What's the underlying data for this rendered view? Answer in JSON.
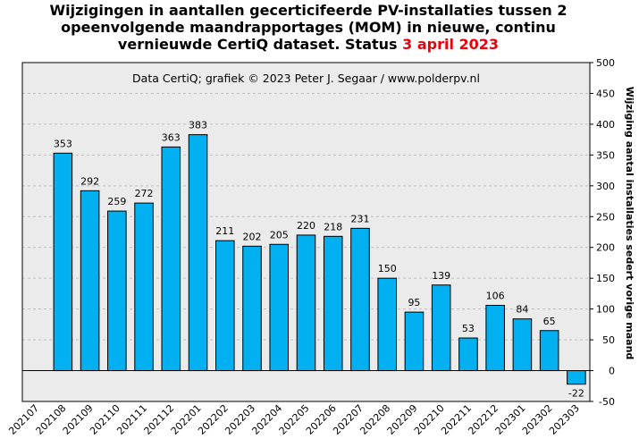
{
  "title": {
    "line1": "Wijzigingen in aantallen gecerticifeerde PV-installaties tussen 2",
    "line2": "opeenvolgende maandrapportages (MOM) in nieuwe, continu",
    "line3_prefix": "vernieuwde CertiQ dataset. Status",
    "line3_highlight": "3 april 2023",
    "highlight_color": "#e8000b"
  },
  "subtitle": "Data CertiQ; grafiek © 2023 Peter J. Segaar / www.polderpv.nl",
  "colors": {
    "bar": "#00b0f0",
    "plot_bg": "#ebebeb",
    "grid": "#bfbfbf"
  },
  "chart_data": {
    "type": "bar",
    "categories": [
      "202107",
      "202108",
      "202109",
      "202110",
      "202111",
      "202112",
      "202201",
      "202202",
      "202203",
      "202204",
      "202205",
      "202206",
      "202207",
      "202208",
      "202209",
      "202210",
      "202211",
      "202212",
      "202301",
      "202302",
      "202303"
    ],
    "values": [
      null,
      353,
      292,
      259,
      272,
      363,
      383,
      211,
      202,
      205,
      220,
      218,
      231,
      150,
      95,
      139,
      53,
      106,
      84,
      65,
      -22
    ],
    "ylabel": "Wijziging aantal installaties sedert vorige maand",
    "ylim": [
      -50,
      500
    ],
    "yticks": [
      -50,
      0,
      50,
      100,
      150,
      200,
      250,
      300,
      350,
      400,
      450,
      500
    ],
    "y_axis_position": "right",
    "grid": "horizontal dashed",
    "legend": "none"
  }
}
